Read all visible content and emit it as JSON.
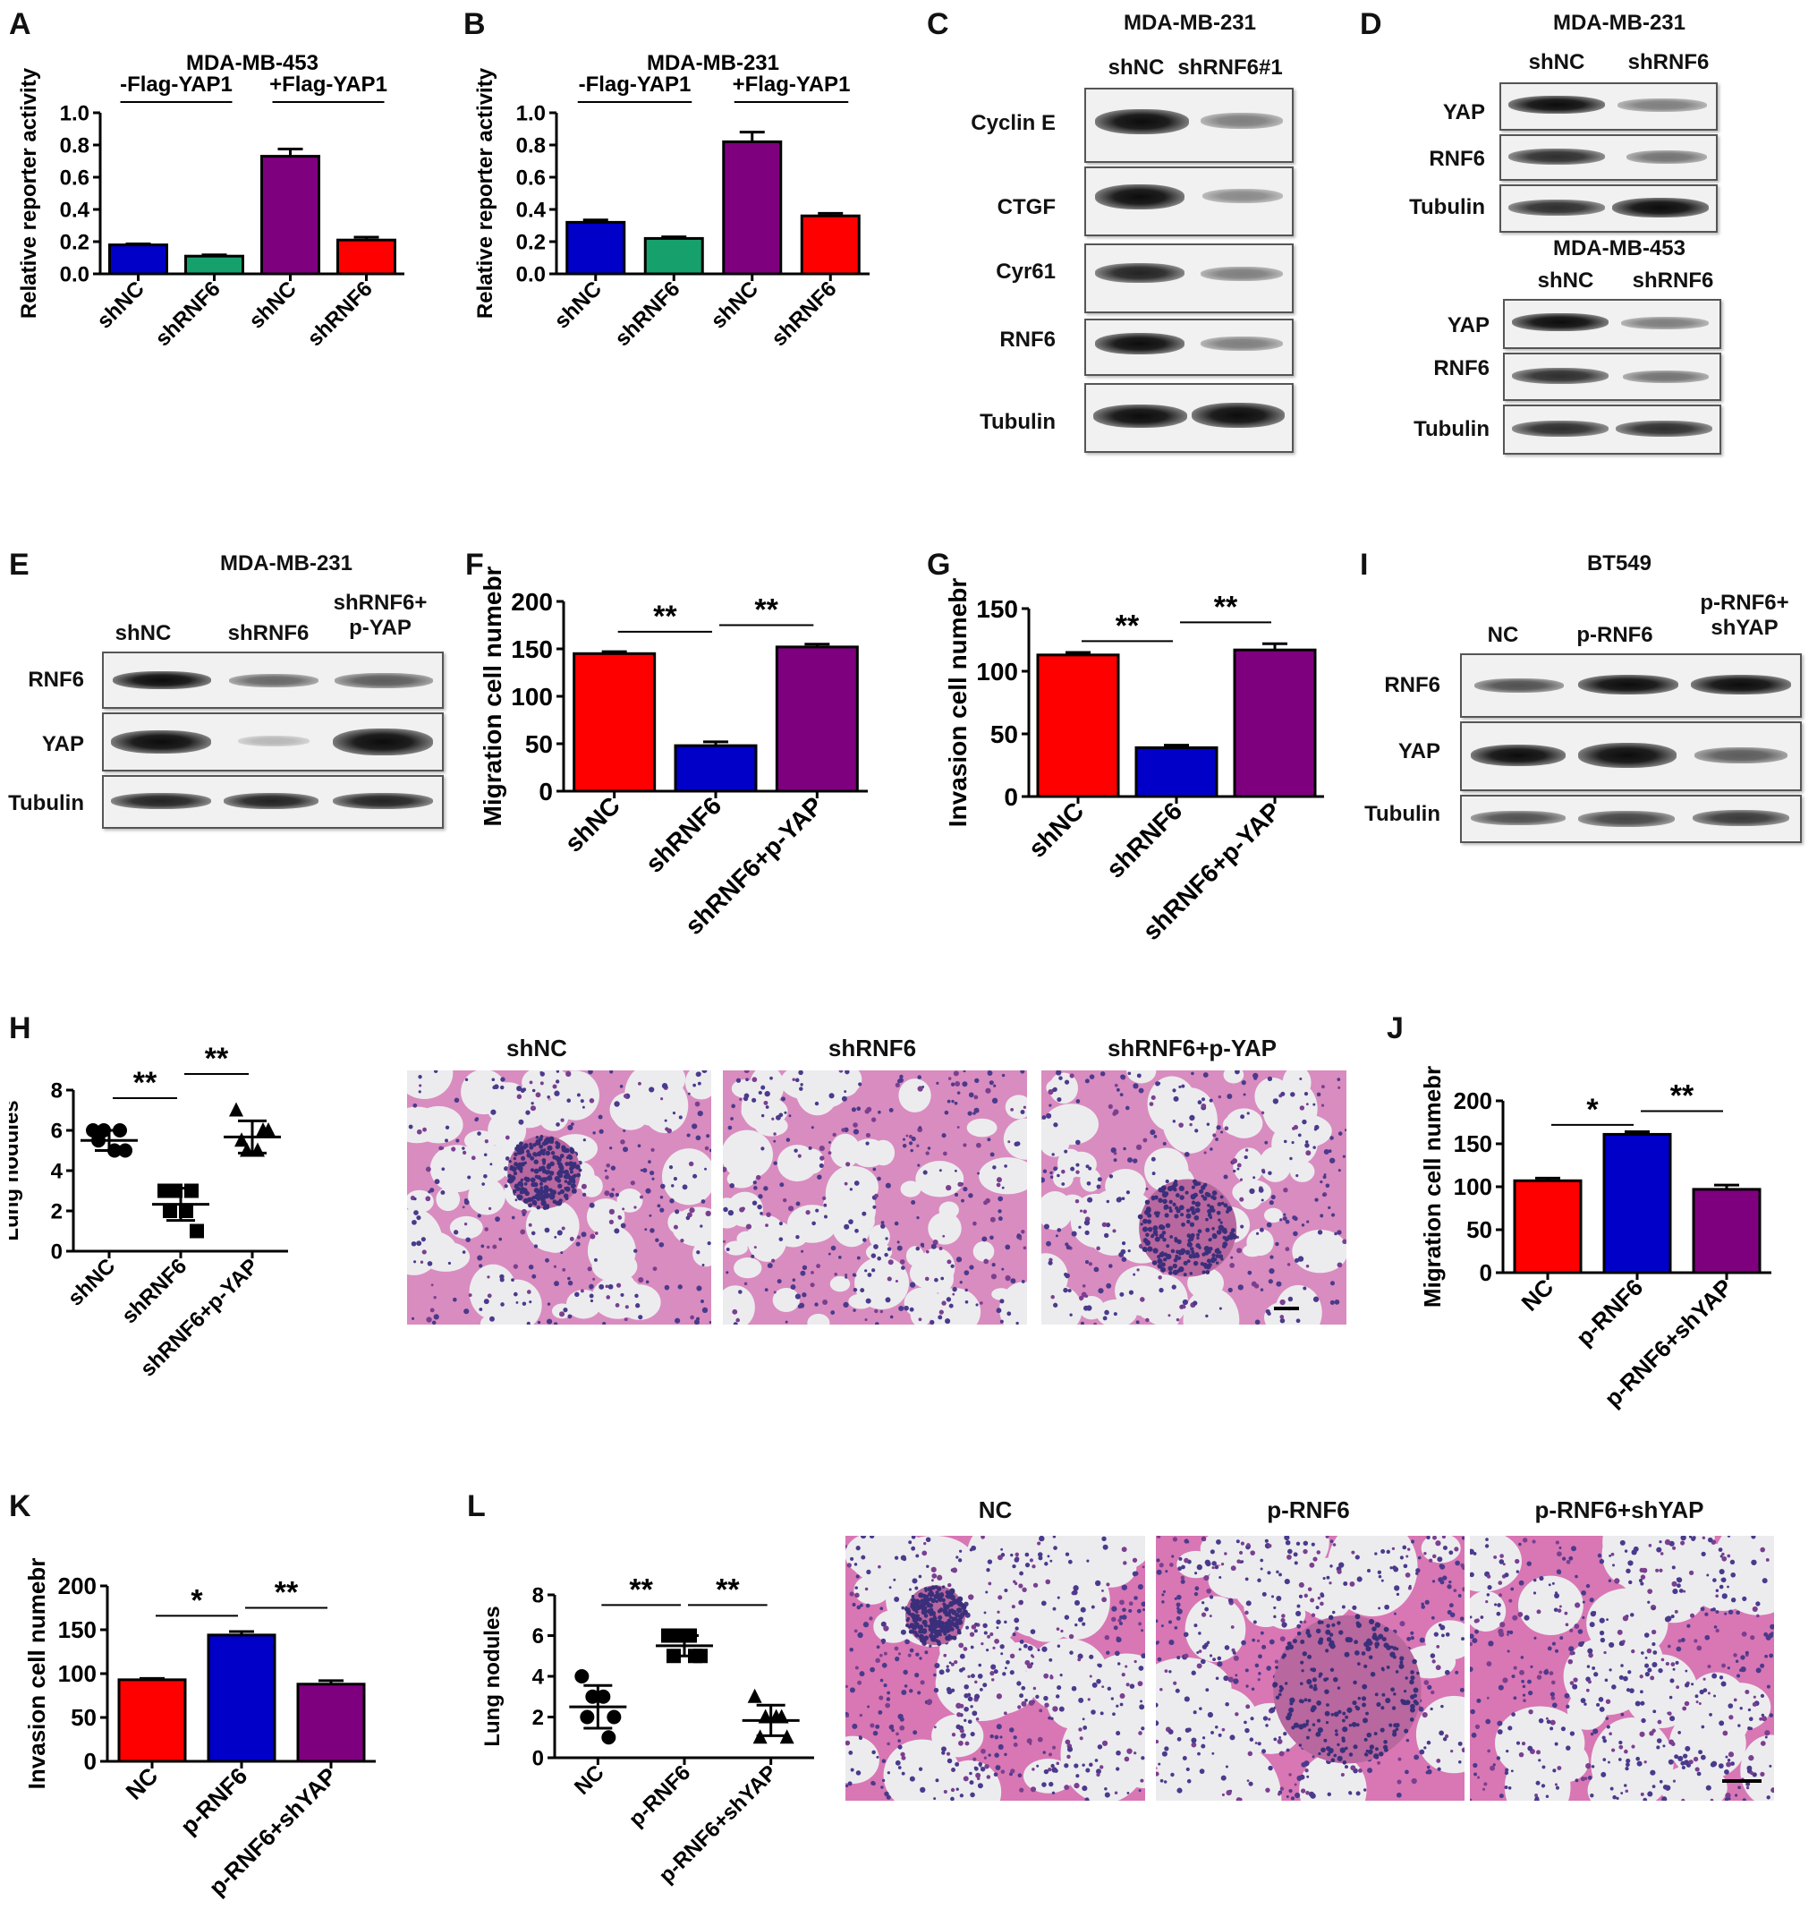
{
  "colors": {
    "red": "#ff0000",
    "blue": "#0000c8",
    "green": "#16a16c",
    "purple": "#7f007f",
    "band": "#1a1a1a",
    "tissue_pink": "#d9539a",
    "nucleus": "#3f3585"
  },
  "panels": {
    "A": {
      "letter": "A"
    },
    "B": {
      "letter": "B"
    },
    "C": {
      "letter": "C"
    },
    "D": {
      "letter": "D"
    },
    "E": {
      "letter": "E"
    },
    "F": {
      "letter": "F"
    },
    "G": {
      "letter": "G"
    },
    "H": {
      "letter": "H"
    },
    "I": {
      "letter": "I"
    },
    "J": {
      "letter": "J"
    },
    "K": {
      "letter": "K"
    },
    "L": {
      "letter": "L"
    }
  },
  "chart_data": [
    {
      "id": "A",
      "type": "bar",
      "title": "MDA-MB-453",
      "ylabel": "Relative reporter activity",
      "ylim": [
        0,
        1.0
      ],
      "yticks": [
        "0.0",
        "0.2",
        "0.4",
        "0.6",
        "0.8",
        "1.0"
      ],
      "categories": [
        "shNC",
        "shRNF6",
        "shNC",
        "shRNF6"
      ],
      "values": [
        0.18,
        0.11,
        0.73,
        0.21
      ],
      "errors": [
        0.006,
        0.008,
        0.045,
        0.018
      ],
      "bar_colors": [
        "blue",
        "green",
        "purple",
        "red"
      ],
      "groups": [
        {
          "label": "-Flag-YAP1",
          "from": 0,
          "to": 1
        },
        {
          "label": "+Flag-YAP1",
          "from": 2,
          "to": 3
        }
      ]
    },
    {
      "id": "B",
      "type": "bar",
      "title": "MDA-MB-231",
      "ylabel": "Relative reporter activity",
      "ylim": [
        0,
        1.0
      ],
      "yticks": [
        "0.0",
        "0.2",
        "0.4",
        "0.6",
        "0.8",
        "1.0"
      ],
      "categories": [
        "shNC",
        "shRNF6",
        "shNC",
        "shRNF6"
      ],
      "values": [
        0.32,
        0.22,
        0.82,
        0.36
      ],
      "errors": [
        0.015,
        0.01,
        0.06,
        0.016
      ],
      "bar_colors": [
        "blue",
        "green",
        "purple",
        "red"
      ],
      "groups": [
        {
          "label": "-Flag-YAP1",
          "from": 0,
          "to": 1
        },
        {
          "label": "+Flag-YAP1",
          "from": 2,
          "to": 3
        }
      ]
    },
    {
      "id": "F",
      "type": "bar",
      "title": "",
      "ylabel": "Migration cell numebr",
      "ylim": [
        0,
        200
      ],
      "yticks": [
        "0",
        "50",
        "100",
        "150",
        "200"
      ],
      "categories": [
        "shNC",
        "shRNF6",
        "shRNF6+p-YAP"
      ],
      "values": [
        145,
        48,
        152
      ],
      "errors": [
        2,
        4,
        3
      ],
      "bar_colors": [
        "red",
        "blue",
        "purple"
      ],
      "significance": [
        {
          "label": "**",
          "from": 0,
          "to": 1,
          "y": 168
        },
        {
          "label": "**",
          "from": 1,
          "to": 2,
          "y": 175
        }
      ]
    },
    {
      "id": "G",
      "type": "bar",
      "title": "",
      "ylabel": "Invasion cell numebr",
      "ylim": [
        0,
        150
      ],
      "yticks": [
        "0",
        "50",
        "100",
        "150"
      ],
      "categories": [
        "shNC",
        "shRNF6",
        "shRNF6+p-YAP"
      ],
      "values": [
        113,
        39,
        117
      ],
      "errors": [
        2,
        2,
        5
      ],
      "bar_colors": [
        "red",
        "blue",
        "purple"
      ],
      "significance": [
        {
          "label": "**",
          "from": 0,
          "to": 1,
          "y": 124
        },
        {
          "label": "**",
          "from": 1,
          "to": 2,
          "y": 139
        }
      ]
    },
    {
      "id": "H",
      "type": "scatter",
      "title": "",
      "ylabel": "Lung nodules",
      "ylim": [
        0,
        8
      ],
      "yticks": [
        "0",
        "2",
        "4",
        "6",
        "8"
      ],
      "categories": [
        "shNC",
        "shRNF6",
        "shRNF6+p-YAP"
      ],
      "points": [
        [
          6,
          6,
          5,
          5,
          5.5,
          6
        ],
        [
          3,
          3,
          2,
          1,
          2,
          3
        ],
        [
          7,
          5,
          5,
          6,
          5.5,
          6
        ]
      ],
      "means": [
        5.5,
        2.33,
        5.67
      ],
      "sds": [
        0.5,
        0.8,
        0.8
      ],
      "markers": [
        "circle",
        "square",
        "triangle"
      ],
      "significance": [
        {
          "label": "**",
          "from": 0,
          "to": 1,
          "y": 7.6
        },
        {
          "label": "**",
          "from": 1,
          "to": 2,
          "y": 8.8
        }
      ]
    },
    {
      "id": "J",
      "type": "bar",
      "title": "",
      "ylabel": "Migration cell numebr",
      "ylim": [
        0,
        200
      ],
      "yticks": [
        "0",
        "50",
        "100",
        "150",
        "200"
      ],
      "categories": [
        "NC",
        "p-RNF6",
        "p-RNF6+shYAP"
      ],
      "values": [
        107,
        161,
        97
      ],
      "errors": [
        3,
        3,
        5
      ],
      "bar_colors": [
        "red",
        "blue",
        "purple"
      ],
      "significance": [
        {
          "label": "*",
          "from": 0,
          "to": 1,
          "y": 172
        },
        {
          "label": "**",
          "from": 1,
          "to": 2,
          "y": 188
        }
      ]
    },
    {
      "id": "K",
      "type": "bar",
      "title": "",
      "ylabel": "Invasion cell numebr",
      "ylim": [
        0,
        200
      ],
      "yticks": [
        "0",
        "50",
        "100",
        "150",
        "200"
      ],
      "categories": [
        "NC",
        "p-RNF6",
        "p-RNF6+shYAP"
      ],
      "values": [
        93,
        144,
        88
      ],
      "errors": [
        1.5,
        4,
        4
      ],
      "bar_colors": [
        "red",
        "blue",
        "purple"
      ],
      "significance": [
        {
          "label": "*",
          "from": 0,
          "to": 1,
          "y": 166
        },
        {
          "label": "**",
          "from": 1,
          "to": 2,
          "y": 175
        }
      ]
    },
    {
      "id": "L",
      "type": "scatter",
      "title": "",
      "ylabel": "Lung nodules",
      "ylim": [
        0,
        8
      ],
      "yticks": [
        "0",
        "2",
        "4",
        "6",
        "8"
      ],
      "categories": [
        "NC",
        "p-RNF6",
        "p-RNF6+shYAP"
      ],
      "points": [
        [
          4,
          3,
          3,
          2,
          2,
          1
        ],
        [
          6,
          6,
          6,
          5,
          5,
          5
        ],
        [
          3,
          2,
          2,
          1,
          1,
          2
        ]
      ],
      "means": [
        2.5,
        5.5,
        1.83
      ],
      "sds": [
        1.05,
        0.5,
        0.75
      ],
      "markers": [
        "circle",
        "square",
        "triangle"
      ],
      "significance": [
        {
          "label": "**",
          "from": 0,
          "to": 1,
          "y": 7.5
        },
        {
          "label": "**",
          "from": 1,
          "to": 2,
          "y": 7.5
        }
      ]
    }
  ],
  "blots": {
    "C": {
      "title": "MDA-MB-231",
      "columns": [
        "shNC",
        "shRNF6#1"
      ],
      "rows": [
        {
          "label": "Cyclin E",
          "intensity": [
            1.0,
            0.35
          ]
        },
        {
          "label": "CTGF",
          "intensity": [
            0.95,
            0.3
          ]
        },
        {
          "label": "Cyr61",
          "intensity": [
            0.85,
            0.4
          ]
        },
        {
          "label": "RNF6",
          "intensity": [
            0.9,
            0.4
          ]
        },
        {
          "label": "Tubulin",
          "intensity": [
            0.95,
            0.95
          ]
        }
      ]
    },
    "D1": {
      "title": "MDA-MB-231",
      "columns": [
        "shNC",
        "shRNF6"
      ],
      "rows": [
        {
          "label": "YAP",
          "intensity": [
            0.9,
            0.4
          ]
        },
        {
          "label": "RNF6",
          "intensity": [
            0.8,
            0.45
          ]
        },
        {
          "label": "Tubulin",
          "intensity": [
            0.85,
            0.9
          ]
        }
      ]
    },
    "D2": {
      "title": "MDA-MB-453",
      "columns": [
        "shNC",
        "shRNF6"
      ],
      "rows": [
        {
          "label": "YAP",
          "intensity": [
            0.9,
            0.4
          ]
        },
        {
          "label": "RNF6",
          "intensity": [
            0.85,
            0.45
          ]
        },
        {
          "label": "Tubulin",
          "intensity": [
            0.85,
            0.85
          ]
        }
      ]
    },
    "E": {
      "title": "MDA-MB-231",
      "columns": [
        "shNC",
        "shRNF6",
        "shRNF6+\np-YAP"
      ],
      "rows": [
        {
          "label": "RNF6",
          "intensity": [
            0.9,
            0.55,
            0.6
          ]
        },
        {
          "label": "YAP",
          "intensity": [
            0.95,
            0.2,
            1.0
          ]
        },
        {
          "label": "Tubulin",
          "intensity": [
            0.9,
            0.9,
            0.9
          ]
        }
      ]
    },
    "I": {
      "title": "BT549",
      "columns": [
        "NC",
        "p-RNF6",
        "p-RNF6+\nshYAP"
      ],
      "rows": [
        {
          "label": "RNF6",
          "intensity": [
            0.6,
            0.95,
            0.95
          ]
        },
        {
          "label": "YAP",
          "intensity": [
            0.9,
            0.95,
            0.55
          ]
        },
        {
          "label": "Tubulin",
          "intensity": [
            0.7,
            0.7,
            0.75
          ]
        }
      ]
    }
  },
  "histology": {
    "H": {
      "titles": [
        "shNC",
        "shRNF6",
        "shRNF6+p-YAP"
      ]
    },
    "L": {
      "titles": [
        "NC",
        "p-RNF6",
        "p-RNF6+shYAP"
      ]
    }
  }
}
